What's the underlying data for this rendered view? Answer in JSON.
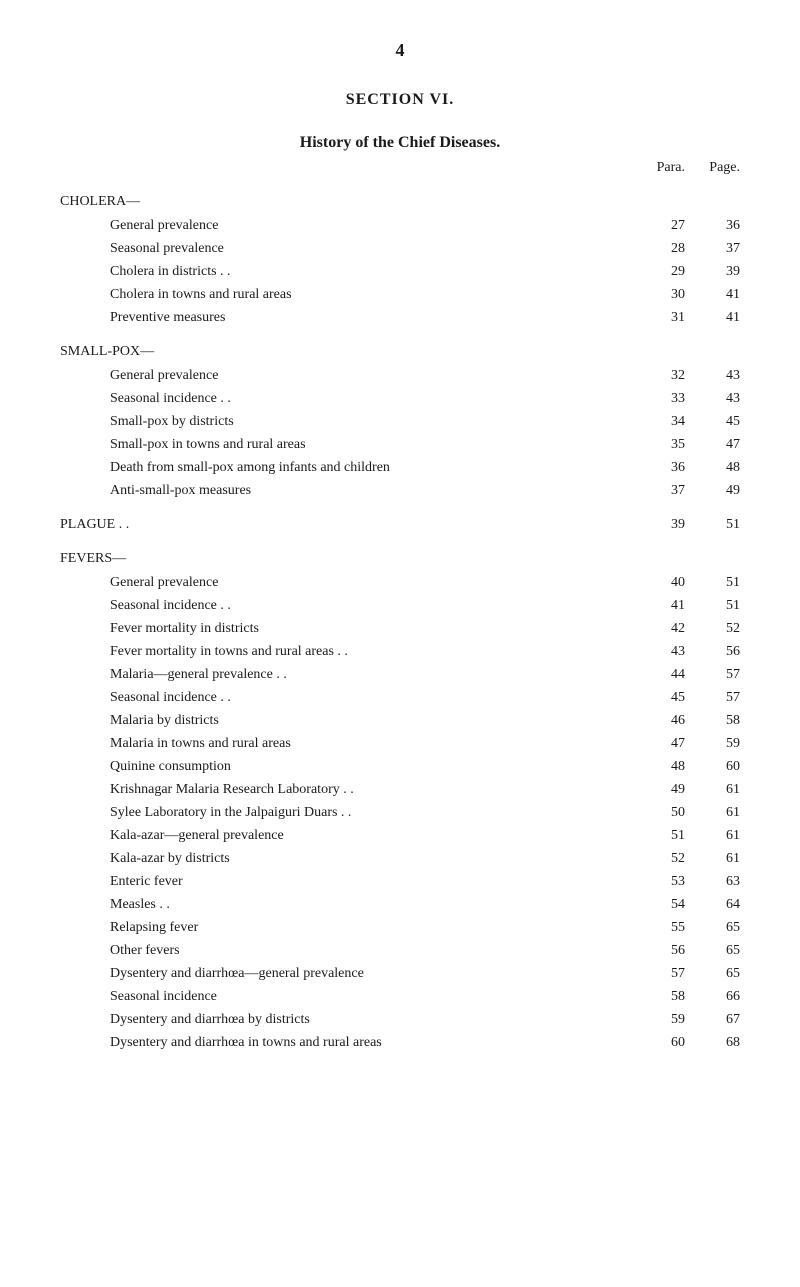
{
  "page_number": "4",
  "section_title": "SECTION VI.",
  "subtitle": "History of the Chief Diseases.",
  "header": {
    "para": "Para.",
    "page": "Page."
  },
  "categories": [
    {
      "name": "CHOLERA—",
      "entries": [
        {
          "text": "General prevalence",
          "para": "27",
          "page": "36"
        },
        {
          "text": "Seasonal prevalence",
          "para": "28",
          "page": "37"
        },
        {
          "text": "Cholera in districts . .",
          "para": "29",
          "page": "39"
        },
        {
          "text": "Cholera in towns and rural areas",
          "para": "30",
          "page": "41"
        },
        {
          "text": "Preventive measures",
          "para": "31",
          "page": "41"
        }
      ]
    },
    {
      "name": "SMALL-POX—",
      "entries": [
        {
          "text": "General prevalence",
          "para": "32",
          "page": "43"
        },
        {
          "text": "Seasonal incidence . .",
          "para": "33",
          "page": "43"
        },
        {
          "text": "Small-pox by districts",
          "para": "34",
          "page": "45"
        },
        {
          "text": "Small-pox in towns and rural areas",
          "para": "35",
          "page": "47"
        },
        {
          "text": "Death from small-pox among infants and children",
          "para": "36",
          "page": "48"
        },
        {
          "text": "Anti-small-pox measures",
          "para": "37",
          "page": "49"
        }
      ]
    }
  ],
  "plague": {
    "name": "PLAGUE  . .",
    "para": "39",
    "page": "51"
  },
  "fevers": {
    "name": "FEVERS—",
    "entries": [
      {
        "text": "General prevalence",
        "para": "40",
        "page": "51"
      },
      {
        "text": "Seasonal incidence . .",
        "para": "41",
        "page": "51"
      },
      {
        "text": "Fever mortality in districts",
        "para": "42",
        "page": "52"
      },
      {
        "text": "Fever mortality in towns and rural areas . .",
        "para": "43",
        "page": "56"
      },
      {
        "text": "Malaria—general prevalence  . .",
        "para": "44",
        "page": "57"
      },
      {
        "text": "Seasonal incidence . .",
        "para": "45",
        "page": "57"
      },
      {
        "text": "Malaria by districts",
        "para": "46",
        "page": "58"
      },
      {
        "text": "Malaria in towns and rural areas",
        "para": "47",
        "page": "59"
      },
      {
        "text": "Quinine consumption",
        "para": "48",
        "page": "60"
      },
      {
        "text": "Krishnagar Malaria Research Laboratory . .",
        "para": "49",
        "page": "61"
      },
      {
        "text": "Sylee Laboratory in the Jalpaiguri Duars . .",
        "para": "50",
        "page": "61"
      },
      {
        "text": "Kala-azar—general prevalence",
        "para": "51",
        "page": "61"
      },
      {
        "text": "Kala-azar by districts",
        "para": "52",
        "page": "61"
      },
      {
        "text": "Enteric fever",
        "para": "53",
        "page": "63"
      },
      {
        "text": "Measles . .",
        "para": "54",
        "page": "64"
      },
      {
        "text": "Relapsing fever",
        "para": "55",
        "page": "65"
      },
      {
        "text": "Other fevers",
        "para": "56",
        "page": "65"
      },
      {
        "text": "Dysentery and diarrhœa—general prevalence",
        "para": "57",
        "page": "65"
      },
      {
        "text": "Seasonal incidence",
        "para": "58",
        "page": "66"
      },
      {
        "text": "Dysentery and diarrhœa by districts",
        "para": "59",
        "page": "67"
      },
      {
        "text": "Dysentery and diarrhœa in towns and rural areas",
        "para": "60",
        "page": "68"
      }
    ]
  }
}
